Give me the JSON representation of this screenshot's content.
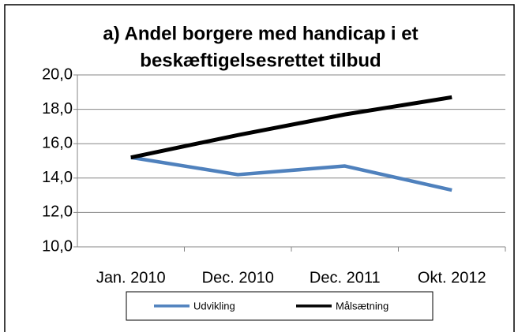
{
  "chart_data": {
    "type": "line",
    "title": "a) Andel borgere med handicap i et beskæftigelsesrettet tilbud",
    "categories": [
      "Jan. 2010",
      "Dec. 2010",
      "Dec. 2011",
      "Okt. 2012"
    ],
    "series": [
      {
        "name": "Udvikling",
        "color": "#4f81bd",
        "values": [
          15.2,
          14.2,
          14.7,
          13.3
        ]
      },
      {
        "name": "Målsætning",
        "color": "#000000",
        "values": [
          15.2,
          16.5,
          17.7,
          18.7
        ]
      }
    ],
    "ylim": [
      10,
      20
    ],
    "yticks": [
      {
        "value": 10,
        "label": "10,0"
      },
      {
        "value": 12,
        "label": "12,0"
      },
      {
        "value": 14,
        "label": "14,0"
      },
      {
        "value": 16,
        "label": "16,0"
      },
      {
        "value": 18,
        "label": "18,0"
      },
      {
        "value": 20,
        "label": "20,0"
      }
    ],
    "grid": true,
    "legend": "bottom"
  }
}
